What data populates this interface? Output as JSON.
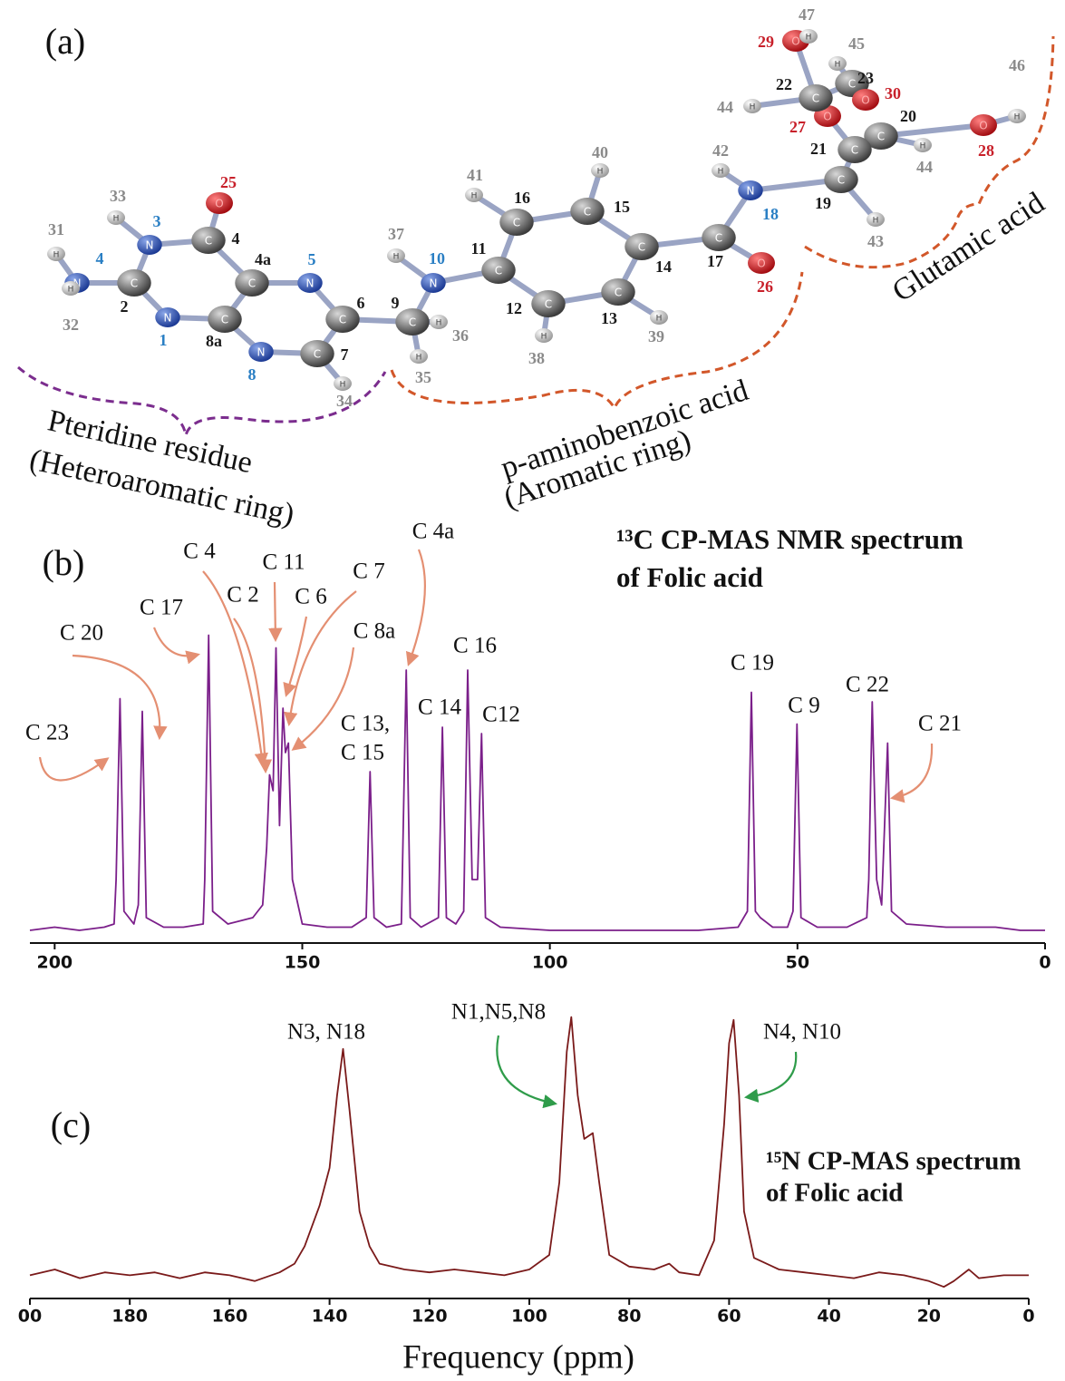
{
  "panels": [
    "(a)",
    "(b)",
    "(c)"
  ],
  "molecule": {
    "atoms": [
      {
        "element": "N",
        "number": "3"
      },
      {
        "element": "C",
        "number": "4"
      },
      {
        "element": "O",
        "number": "25"
      },
      {
        "element": "N",
        "number": "4"
      },
      {
        "element": "C",
        "number": "2"
      },
      {
        "element": "N",
        "number": "1"
      },
      {
        "element": "C",
        "number": "8a"
      },
      {
        "element": "C",
        "number": "4a"
      },
      {
        "element": "N",
        "number": "5"
      },
      {
        "element": "C",
        "number": "6"
      },
      {
        "element": "N",
        "number": "8"
      },
      {
        "element": "C",
        "number": "7"
      },
      {
        "element": "C",
        "number": "9"
      },
      {
        "element": "N",
        "number": "10"
      },
      {
        "element": "C",
        "number": "11"
      },
      {
        "element": "C",
        "number": "16"
      },
      {
        "element": "C",
        "number": "15"
      },
      {
        "element": "C",
        "number": "14"
      },
      {
        "element": "C",
        "number": "13"
      },
      {
        "element": "C",
        "number": "12"
      },
      {
        "element": "C",
        "number": "17"
      },
      {
        "element": "O",
        "number": "26"
      },
      {
        "element": "N",
        "number": "18"
      },
      {
        "element": "C",
        "number": "19"
      },
      {
        "element": "C",
        "number": "20"
      },
      {
        "element": "C",
        "number": "21"
      },
      {
        "element": "O",
        "number": "27"
      },
      {
        "element": "O",
        "number": "28"
      },
      {
        "element": "C",
        "number": "22"
      },
      {
        "element": "C",
        "number": "23"
      },
      {
        "element": "O",
        "number": "30"
      },
      {
        "element": "O",
        "number": "29"
      },
      {
        "element": "H",
        "number": "33"
      },
      {
        "element": "H",
        "number": "31"
      },
      {
        "element": "H",
        "number": "32"
      },
      {
        "element": "H",
        "number": "37"
      },
      {
        "element": "H",
        "number": "36"
      },
      {
        "element": "H",
        "number": "35"
      },
      {
        "element": "H",
        "number": "34"
      },
      {
        "element": "H",
        "number": "41"
      },
      {
        "element": "H",
        "number": "40"
      },
      {
        "element": "H",
        "number": "38"
      },
      {
        "element": "H",
        "number": "39"
      },
      {
        "element": "H",
        "number": "42"
      },
      {
        "element": "H",
        "number": "43"
      },
      {
        "element": "H",
        "number": "44"
      },
      {
        "element": "H",
        "number": "44"
      },
      {
        "element": "H",
        "number": "45"
      },
      {
        "element": "H",
        "number": "46"
      },
      {
        "element": "H",
        "number": "47"
      }
    ],
    "groups": [
      "Pteridine residue",
      "(Heteroaromatic ring)",
      "p-aminobenzoic acid",
      "(Aromatic ring)",
      "Glutamic acid"
    ]
  },
  "chart_data": [
    {
      "type": "line",
      "title": [
        "¹³C CP-MAS NMR spectrum",
        "of Folic acid"
      ],
      "color": "#7b1f8a",
      "xlim": [
        205,
        0
      ],
      "xticks": [
        200,
        150,
        100,
        50,
        0
      ],
      "ylim": [
        0,
        100
      ],
      "x": [
        205,
        200,
        195,
        190,
        188,
        187.6,
        186.8,
        186,
        184,
        183.1,
        182.3,
        181.5,
        178,
        174,
        170,
        169.7,
        168.9,
        168.1,
        165,
        160,
        158,
        157.2,
        156.6,
        155.9,
        155.3,
        154.6,
        153.9,
        153.4,
        152.8,
        152,
        150,
        145,
        140,
        137.1,
        136.3,
        135.5,
        133,
        130,
        129.8,
        129,
        128.2,
        126,
        122.5,
        121.7,
        120.9,
        119,
        117.4,
        116.6,
        115.7,
        114.6,
        113.8,
        113,
        110,
        100,
        90,
        80,
        70,
        62,
        60.1,
        59.3,
        58.5,
        57.5,
        55,
        52,
        50.9,
        50.1,
        49.3,
        46,
        40,
        36,
        35.6,
        34.9,
        34,
        33,
        31.8,
        31,
        28,
        20,
        10,
        5,
        0
      ],
      "values": [
        4,
        5,
        4,
        5,
        6,
        20,
        77,
        10,
        6,
        12,
        73,
        8,
        5,
        5,
        6,
        20,
        97,
        10,
        6,
        8,
        12,
        30,
        53,
        48,
        93,
        37,
        74,
        60,
        63,
        20,
        6,
        5,
        5,
        8,
        54,
        8,
        5,
        6,
        20,
        86,
        8,
        5,
        8,
        68,
        8,
        6,
        10,
        86,
        20,
        20,
        66,
        8,
        5,
        4,
        4,
        4,
        4,
        5,
        10,
        79,
        10,
        8,
        5,
        5,
        10,
        69,
        8,
        5,
        5,
        8,
        20,
        76,
        20,
        12,
        63,
        10,
        6,
        5,
        5,
        4,
        4
      ],
      "annotations": [
        "C 23",
        "C 20",
        "C 17",
        "C 4",
        "C 2",
        "C 11",
        "C 6",
        "C 7",
        "C 8a",
        "C 4a",
        "C 13,",
        "C 15",
        "C 14",
        "C 16",
        "C12",
        "C 19",
        "C 9",
        "C 22",
        "C 21"
      ]
    },
    {
      "type": "line",
      "title": [
        "¹⁵N CP-MAS spectrum",
        "of Folic acid"
      ],
      "color": "#7a1a1a",
      "xlim": [
        200,
        0
      ],
      "xticks": [
        {
          "value": 200,
          "label": "00"
        },
        180,
        160,
        140,
        120,
        100,
        80,
        60,
        40,
        20,
        0
      ],
      "ylim": [
        0,
        100
      ],
      "xlabel": "Frequency (ppm)",
      "x": [
        200,
        195,
        190,
        185,
        180,
        175,
        170,
        165,
        160,
        155,
        150,
        147,
        145,
        142,
        140,
        138.5,
        137.3,
        136,
        134,
        132,
        130,
        125,
        120,
        115,
        110,
        105,
        100,
        96,
        94,
        92.5,
        91.6,
        90.3,
        89,
        87.3,
        86,
        84,
        80,
        75,
        72,
        70,
        66,
        63,
        61,
        60,
        59.1,
        58,
        57,
        55,
        50,
        45,
        40,
        35,
        30,
        25,
        20,
        17,
        15,
        12,
        10,
        5,
        0
      ],
      "values": [
        8,
        10,
        7,
        9,
        8,
        9,
        7,
        9,
        8,
        6,
        9,
        12,
        18,
        32,
        45,
        70,
        86,
        65,
        30,
        18,
        12,
        10,
        9,
        10,
        9,
        8,
        10,
        15,
        40,
        85,
        97,
        70,
        55,
        57,
        40,
        15,
        11,
        10,
        12,
        9,
        8,
        20,
        60,
        88,
        96,
        70,
        30,
        14,
        10,
        9,
        8,
        7,
        9,
        8,
        6,
        4,
        6,
        10,
        7,
        8,
        8
      ],
      "annotations": [
        "N3, N18",
        "N1,N5,N8",
        "N4, N10"
      ]
    }
  ]
}
